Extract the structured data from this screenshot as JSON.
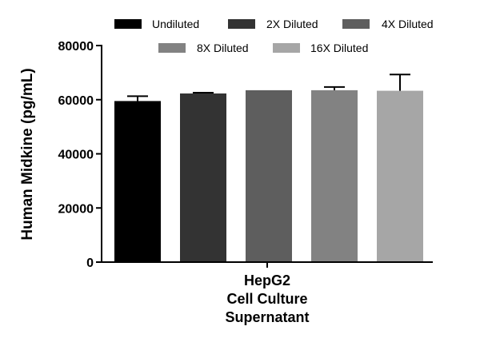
{
  "chart_data": {
    "type": "bar",
    "ylabel": "Human Midkine (pg/mL)",
    "xlabel_lines": [
      "HepG2",
      "Cell Culture",
      "Supernatant"
    ],
    "ylim": [
      0,
      80000
    ],
    "yticks": [
      0,
      20000,
      40000,
      60000,
      80000
    ],
    "legend_placement": "top",
    "series": [
      {
        "name": "Undiluted",
        "value": 59500,
        "error": 1800,
        "color": "#000000"
      },
      {
        "name": "2X Diluted",
        "value": 62300,
        "error": 300,
        "color": "#333333"
      },
      {
        "name": "4X Diluted",
        "value": 63500,
        "error": 0,
        "color": "#5e5e5e"
      },
      {
        "name": "8X Diluted",
        "value": 63500,
        "error": 1200,
        "color": "#828282"
      },
      {
        "name": "16X Diluted",
        "value": 63300,
        "error": 6000,
        "color": "#a6a6a6"
      }
    ]
  }
}
